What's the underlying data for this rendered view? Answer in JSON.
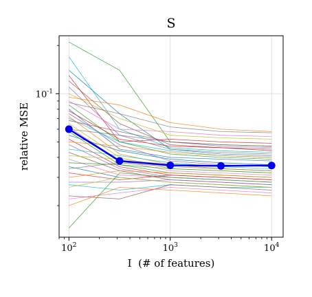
{
  "chart_data": {
    "type": "line",
    "title": "S",
    "xlabel": "I  (# of features)",
    "ylabel": "relative MSE",
    "x_scale": "log",
    "y_scale": "log",
    "xlim": [
      80,
      13000
    ],
    "ylim": [
      0.0127,
      0.23
    ],
    "grid": true,
    "x_ticks": [
      {
        "value": 100,
        "base": "10",
        "exp": "2"
      },
      {
        "value": 1000,
        "base": "10",
        "exp": "3"
      },
      {
        "value": 10000,
        "base": "10",
        "exp": "4"
      }
    ],
    "y_ticks": [
      {
        "value": 0.1,
        "base": "10",
        "exp": "-1"
      }
    ],
    "x": [
      100,
      316,
      1000,
      3162,
      10000
    ],
    "mean_series": {
      "values": [
        0.06,
        0.038,
        0.0357,
        0.0354,
        0.0356
      ],
      "color": "#0000ee"
    },
    "background_series": [
      {
        "color": "#2ca02c",
        "values": [
          0.21,
          0.14,
          0.05,
          0.048,
          0.047
        ]
      },
      {
        "color": "#17becf",
        "values": [
          0.17,
          0.06,
          0.046,
          0.044,
          0.043
        ]
      },
      {
        "color": "#1f77b4",
        "values": [
          0.14,
          0.075,
          0.045,
          0.042,
          0.041
        ]
      },
      {
        "color": "#d62728",
        "values": [
          0.13,
          0.05,
          0.052,
          0.05,
          0.049
        ]
      },
      {
        "color": "#8c564b",
        "values": [
          0.12,
          0.065,
          0.048,
          0.046,
          0.045
        ]
      },
      {
        "color": "#9467bd",
        "values": [
          0.11,
          0.055,
          0.05,
          0.047,
          0.046
        ]
      },
      {
        "color": "#bcbd22",
        "values": [
          0.1,
          0.07,
          0.055,
          0.053,
          0.052
        ]
      },
      {
        "color": "#ff7f0e",
        "values": [
          0.095,
          0.085,
          0.066,
          0.06,
          0.058
        ]
      },
      {
        "color": "#e377c2",
        "values": [
          0.09,
          0.06,
          0.058,
          0.055,
          0.054
        ]
      },
      {
        "color": "#7f7f7f",
        "values": [
          0.088,
          0.075,
          0.062,
          0.058,
          0.057
        ]
      },
      {
        "color": "#2ca02c",
        "values": [
          0.085,
          0.05,
          0.042,
          0.04,
          0.039
        ]
      },
      {
        "color": "#1f77b4",
        "values": [
          0.08,
          0.045,
          0.04,
          0.039,
          0.038
        ]
      },
      {
        "color": "#d62728",
        "values": [
          0.078,
          0.052,
          0.047,
          0.046,
          0.044
        ]
      },
      {
        "color": "#9467bd",
        "values": [
          0.075,
          0.048,
          0.038,
          0.036,
          0.035
        ]
      },
      {
        "color": "#ff7f0e",
        "values": [
          0.072,
          0.042,
          0.036,
          0.034,
          0.033
        ]
      },
      {
        "color": "#17becf",
        "values": [
          0.07,
          0.05,
          0.044,
          0.041,
          0.04
        ]
      },
      {
        "color": "#8c564b",
        "values": [
          0.068,
          0.058,
          0.05,
          0.048,
          0.047
        ]
      },
      {
        "color": "#bcbd22",
        "values": [
          0.065,
          0.04,
          0.034,
          0.033,
          0.032
        ]
      },
      {
        "color": "#e377c2",
        "values": [
          0.062,
          0.038,
          0.033,
          0.032,
          0.031
        ]
      },
      {
        "color": "#7f7f7f",
        "values": [
          0.06,
          0.055,
          0.045,
          0.043,
          0.042
        ]
      },
      {
        "color": "#2ca02c",
        "values": [
          0.058,
          0.036,
          0.032,
          0.031,
          0.03
        ]
      },
      {
        "color": "#1f77b4",
        "values": [
          0.055,
          0.044,
          0.039,
          0.037,
          0.036
        ]
      },
      {
        "color": "#d62728",
        "values": [
          0.052,
          0.035,
          0.031,
          0.03,
          0.029
        ]
      },
      {
        "color": "#ff7f0e",
        "values": [
          0.05,
          0.047,
          0.043,
          0.041,
          0.04
        ]
      },
      {
        "color": "#9467bd",
        "values": [
          0.048,
          0.034,
          0.03,
          0.029,
          0.028
        ]
      },
      {
        "color": "#17becf",
        "values": [
          0.045,
          0.041,
          0.037,
          0.035,
          0.034
        ]
      },
      {
        "color": "#8c564b",
        "values": [
          0.043,
          0.033,
          0.029,
          0.028,
          0.027
        ]
      },
      {
        "color": "#bcbd22",
        "values": [
          0.041,
          0.039,
          0.036,
          0.034,
          0.033
        ]
      },
      {
        "color": "#e377c2",
        "values": [
          0.039,
          0.031,
          0.03,
          0.029,
          0.028
        ]
      },
      {
        "color": "#2ca02c",
        "values": [
          0.037,
          0.036,
          0.034,
          0.033,
          0.032
        ]
      },
      {
        "color": "#1f77b4",
        "values": [
          0.035,
          0.03,
          0.028,
          0.027,
          0.026
        ]
      },
      {
        "color": "#7f7f7f",
        "values": [
          0.034,
          0.037,
          0.035,
          0.034,
          0.033
        ]
      },
      {
        "color": "#d62728",
        "values": [
          0.032,
          0.029,
          0.031,
          0.03,
          0.029
        ]
      },
      {
        "color": "#ff7f0e",
        "values": [
          0.03,
          0.033,
          0.032,
          0.031,
          0.03
        ]
      },
      {
        "color": "#9467bd",
        "values": [
          0.028,
          0.028,
          0.029,
          0.028,
          0.027
        ]
      },
      {
        "color": "#17becf",
        "values": [
          0.027,
          0.025,
          0.027,
          0.026,
          0.026
        ]
      },
      {
        "color": "#bcbd22",
        "values": [
          0.026,
          0.03,
          0.028,
          0.027,
          0.026
        ]
      },
      {
        "color": "#8c564b",
        "values": [
          0.023,
          0.022,
          0.027,
          0.026,
          0.025
        ]
      },
      {
        "color": "#e377c2",
        "values": [
          0.022,
          0.024,
          0.026,
          0.025,
          0.024
        ]
      },
      {
        "color": "#ff7f0e",
        "values": [
          0.02,
          0.026,
          0.025,
          0.024,
          0.023
        ]
      },
      {
        "color": "#2ca02c",
        "values": [
          0.0145,
          0.032,
          0.03,
          0.029,
          0.028
        ]
      }
    ]
  }
}
